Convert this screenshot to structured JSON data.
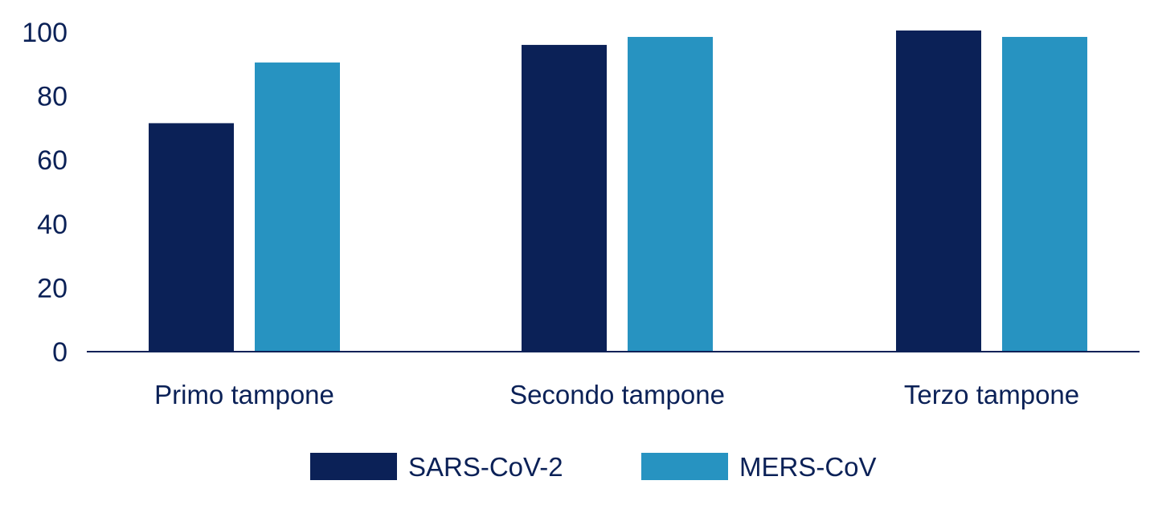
{
  "chart_data": {
    "type": "bar",
    "title": "",
    "xlabel": "",
    "ylabel": "",
    "categories": [
      "Primo tampone",
      "Secondo tampone",
      "Terzo tampone"
    ],
    "series": [
      {
        "name": "SARS-CoV-2",
        "values": [
          71.5,
          96,
          100.5
        ],
        "color": "#0b2157"
      },
      {
        "name": "MERS-CoV",
        "values": [
          90.5,
          98.5,
          98.5
        ],
        "color": "#2793c1"
      }
    ],
    "ylim": [
      0,
      100
    ],
    "yticks": [
      "0",
      "20",
      "40",
      "60",
      "80",
      "100"
    ],
    "grid": false,
    "legend_position": "bottom"
  },
  "colors": {
    "text": "#0b2157",
    "axis": "#0b2157"
  }
}
